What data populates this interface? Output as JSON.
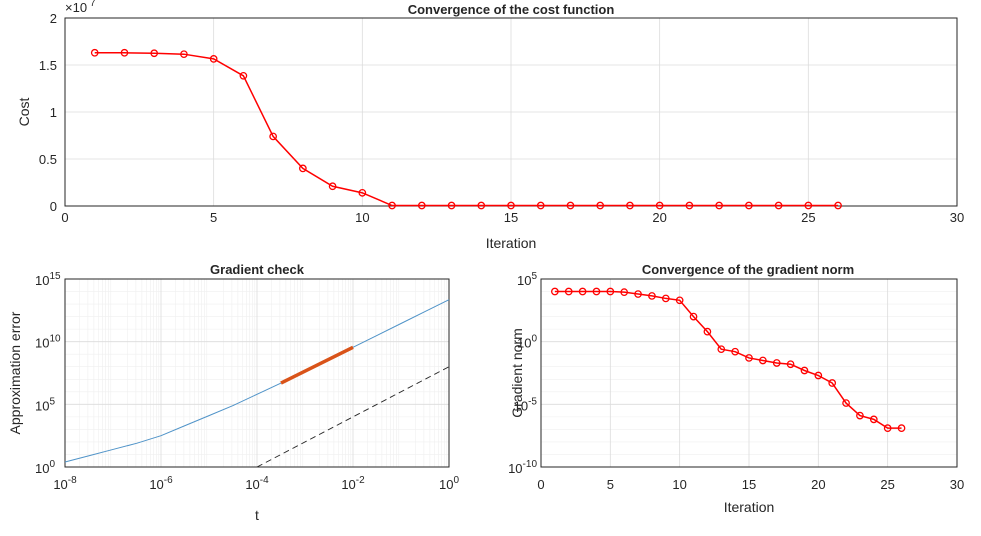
{
  "chart_data": [
    {
      "type": "line",
      "title": "Convergence of the cost function",
      "xlabel": "Iteration",
      "ylabel": "Cost",
      "exponent_label": "×10",
      "exponent_value": "7",
      "xlim": [
        0,
        30
      ],
      "ylim": [
        0,
        2
      ],
      "xticks": [
        "0",
        "5",
        "10",
        "15",
        "20",
        "25",
        "30"
      ],
      "yticks": [
        "0",
        "0.5",
        "1",
        "1.5",
        "2"
      ],
      "grid": true,
      "series": [
        {
          "color": "#ff0000",
          "marker": "circle",
          "x": [
            1,
            2,
            3,
            4,
            5,
            6,
            7,
            8,
            9,
            10,
            11,
            12,
            13,
            14,
            15,
            16,
            17,
            18,
            19,
            20,
            21,
            22,
            23,
            24,
            25,
            26
          ],
          "y": [
            1.63,
            1.63,
            1.625,
            1.615,
            1.565,
            1.385,
            0.74,
            0.4,
            0.21,
            0.14,
            0.005,
            0.005,
            0.005,
            0.005,
            0.005,
            0.005,
            0.005,
            0.005,
            0.005,
            0.005,
            0.005,
            0.005,
            0.005,
            0.005,
            0.005,
            0.005
          ]
        }
      ]
    },
    {
      "type": "line",
      "title": "Gradient check",
      "xlabel": "t",
      "ylabel": "Approximation error",
      "xscale": "log",
      "yscale": "log",
      "xlim_exp": [
        -8,
        0
      ],
      "ylim_exp": [
        0,
        15
      ],
      "xticks": [
        {
          "base": "10",
          "exp": "-8"
        },
        {
          "base": "10",
          "exp": "-6"
        },
        {
          "base": "10",
          "exp": "-4"
        },
        {
          "base": "10",
          "exp": "-2"
        },
        {
          "base": "10",
          "exp": "0"
        }
      ],
      "yticks": [
        {
          "base": "10",
          "exp": "0"
        },
        {
          "base": "10",
          "exp": "5"
        },
        {
          "base": "10",
          "exp": "10"
        },
        {
          "base": "10",
          "exp": "15"
        }
      ],
      "grid": true,
      "series": [
        {
          "color": "#4f93c8",
          "style": "solid",
          "log10_x": [
            -8,
            -7.5,
            -7,
            -6.5,
            -6,
            -5.5,
            -5,
            -4.5,
            -4,
            -3.5,
            -3,
            -2.5,
            -2,
            -1.5,
            -1,
            -0.5,
            0
          ],
          "log10_y": [
            0.4,
            0.9,
            1.4,
            1.9,
            2.5,
            3.3,
            4.1,
            4.9,
            5.8,
            6.7,
            7.65,
            8.6,
            9.55,
            10.5,
            11.45,
            12.4,
            13.35
          ]
        },
        {
          "color": "#d95319",
          "style": "bold",
          "log10_x": [
            -3.5,
            -2
          ],
          "log10_y": [
            6.7,
            9.55
          ]
        },
        {
          "color": "#262626",
          "style": "dashed",
          "log10_x": [
            -4,
            0
          ],
          "log10_y": [
            0,
            8
          ]
        }
      ]
    },
    {
      "type": "line",
      "title": "Convergence of the gradient norm",
      "xlabel": "Iteration",
      "ylabel": "Gradient norm",
      "yscale": "log",
      "xlim": [
        0,
        30
      ],
      "ylim_exp": [
        -10,
        5
      ],
      "xticks": [
        "0",
        "5",
        "10",
        "15",
        "20",
        "25",
        "30"
      ],
      "yticks": [
        {
          "base": "10",
          "exp": "-10"
        },
        {
          "base": "10",
          "exp": "-5"
        },
        {
          "base": "10",
          "exp": "0"
        },
        {
          "base": "10",
          "exp": "5"
        }
      ],
      "grid": true,
      "series": [
        {
          "color": "#ff0000",
          "marker": "circle",
          "x": [
            1,
            2,
            3,
            4,
            5,
            6,
            7,
            8,
            9,
            10,
            11,
            12,
            13,
            14,
            15,
            16,
            17,
            18,
            19,
            20,
            21,
            22,
            23,
            24,
            25,
            26
          ],
          "log10_y": [
            4.0,
            4.0,
            4.0,
            4.0,
            4.0,
            3.95,
            3.8,
            3.65,
            3.45,
            3.3,
            2.0,
            0.8,
            -0.6,
            -0.8,
            -1.3,
            -1.5,
            -1.7,
            -1.8,
            -2.3,
            -2.7,
            -3.3,
            -4.9,
            -5.9,
            -6.2,
            -6.9,
            -6.9
          ]
        }
      ]
    }
  ]
}
